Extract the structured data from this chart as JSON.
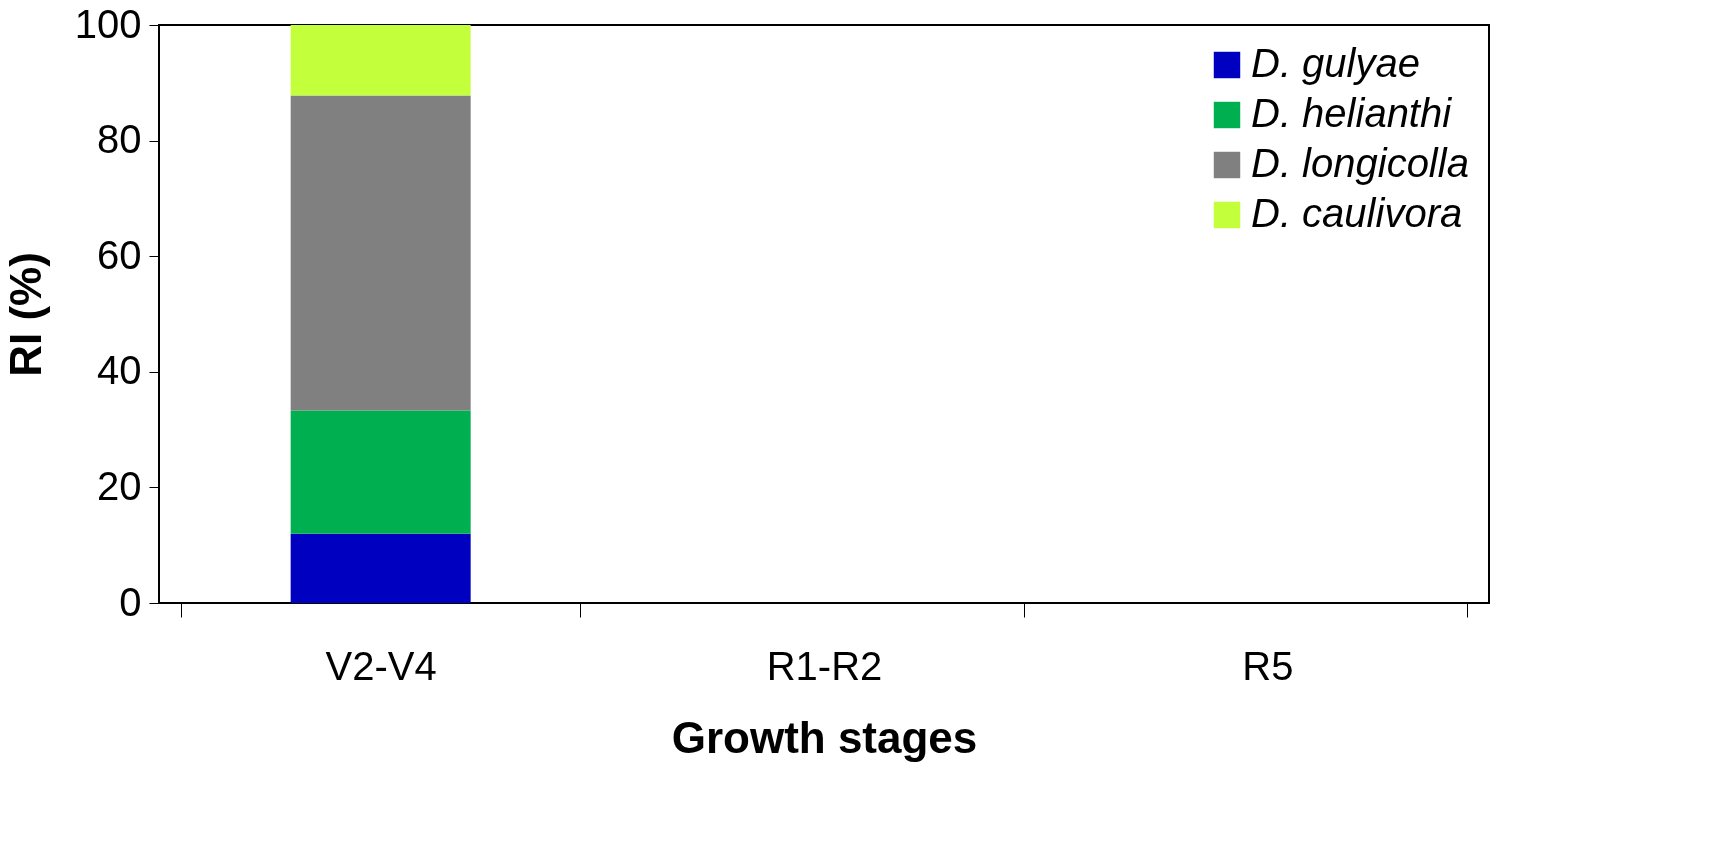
{
  "chart_data": {
    "type": "bar",
    "stacked": true,
    "xlabel": "Growth stages",
    "ylabel": "RI (%)",
    "categories": [
      "V2-V4",
      "R1-R2",
      "R5"
    ],
    "series": [
      {
        "name": "D. gulyae",
        "color": "#0000c0",
        "values": [
          12,
          0,
          0
        ]
      },
      {
        "name": "D. helianthi",
        "color": "#00b050",
        "values": [
          21.3,
          0,
          0
        ]
      },
      {
        "name": "D. longicolla",
        "color": "#808080",
        "values": [
          54.5,
          0,
          0
        ]
      },
      {
        "name": "D. caulivora",
        "color": "#c4ff3c",
        "values": [
          12.2,
          0,
          0
        ]
      }
    ],
    "ylim": [
      0,
      100
    ],
    "yticks": [
      0,
      20,
      40,
      60,
      80,
      100
    ],
    "grid": false,
    "legend": "top right"
  }
}
